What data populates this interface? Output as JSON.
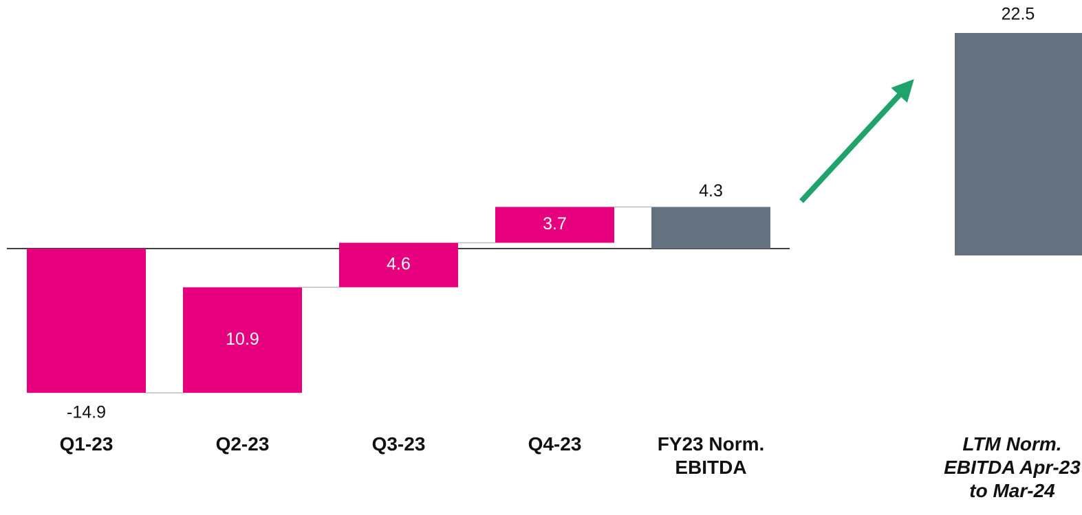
{
  "chart_data": {
    "type": "waterfall",
    "categories": [
      "Q1-23",
      "Q2-23",
      "Q3-23",
      "Q4-23",
      "FY23 Norm. EBITDA",
      "LTM Norm. EBITDA Apr-23 to Mar-24"
    ],
    "values": [
      -14.9,
      10.9,
      4.6,
      3.7,
      4.3,
      22.5
    ],
    "is_total": [
      false,
      false,
      false,
      false,
      true,
      true
    ],
    "delta_color": "#e6007e",
    "total_color": "#64717f",
    "arrow_color": "#1fa36b"
  }
}
